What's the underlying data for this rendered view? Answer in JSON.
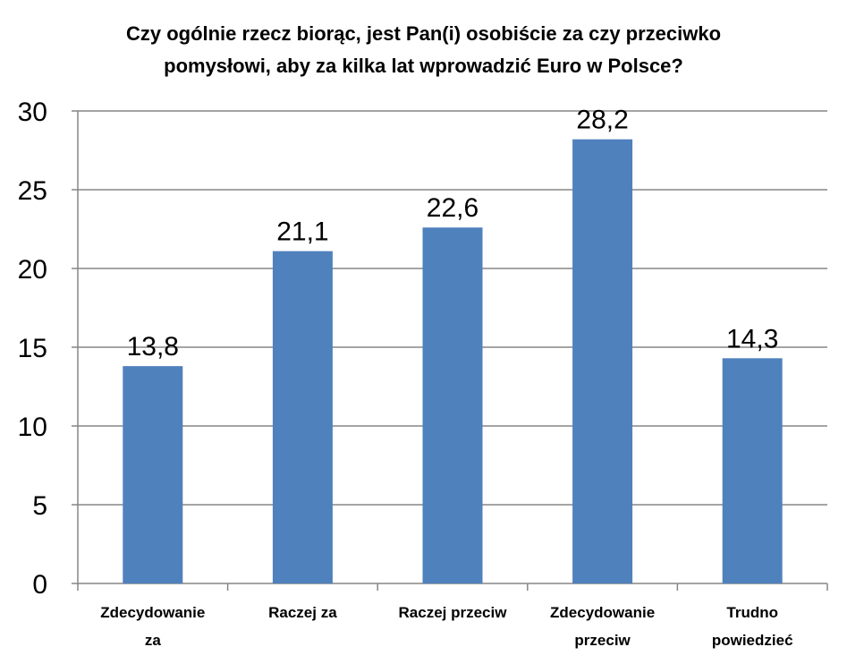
{
  "chart_data": {
    "type": "bar",
    "title_lines": [
      "Czy ogólnie rzecz biorąc, jest Pan(i) osobiście za czy przeciwko",
      "pomysłowi, aby za kilka lat wprowadzić Euro w Polsce?"
    ],
    "categories": [
      [
        "Zdecydowanie",
        "za"
      ],
      [
        "Raczej za"
      ],
      [
        "Raczej przeciw"
      ],
      [
        "Zdecydowanie",
        "przeciw"
      ],
      [
        "Trudno",
        "powiedzieć"
      ]
    ],
    "values": [
      13.8,
      21.1,
      22.6,
      28.2,
      14.3
    ],
    "data_labels": [
      "13,8",
      "21,1",
      "22,6",
      "28,2",
      "14,3"
    ],
    "yticks": [
      "0",
      "5",
      "10",
      "15",
      "20",
      "25",
      "30"
    ],
    "ylim": [
      0,
      30
    ],
    "grid": true,
    "legend": "none",
    "colors": {
      "bar": "#4F81BD",
      "grid": "#868686",
      "axis": "#868686"
    }
  }
}
